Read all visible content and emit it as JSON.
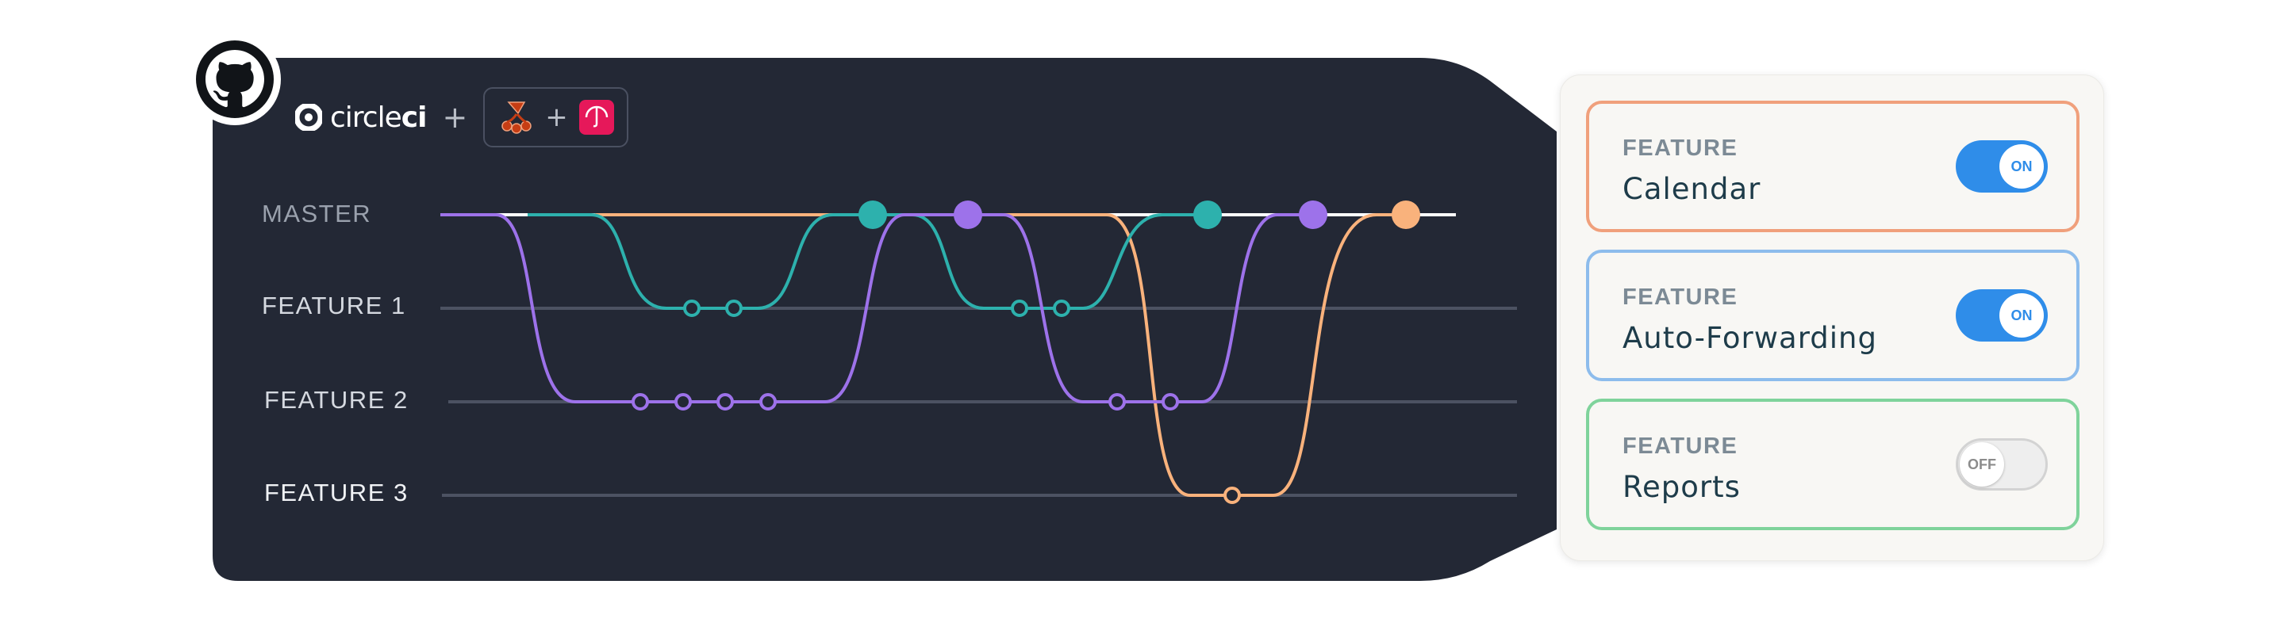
{
  "integrations": {
    "circleci_text_light": "circle",
    "circleci_text_bold": "ci",
    "plus": "+"
  },
  "branches": [
    "MASTER",
    "FEATURE 1",
    "FEATURE 2",
    "FEATURE 3"
  ],
  "colors": {
    "panel": "#232835",
    "master_line": "#ffffff",
    "feature_line": "#4c5262",
    "purple": "#9d72ea",
    "teal": "#2db1ad",
    "orange": "#f9b27c",
    "accent_on": "#2f8de9"
  },
  "flags": {
    "kicker": "FEATURE",
    "items": [
      {
        "name": "Calendar",
        "state": "ON",
        "enabled": true,
        "border_color": "#f0a07c"
      },
      {
        "name": "Auto-Forwarding",
        "state": "ON",
        "enabled": true,
        "border_color": "#8dbcec"
      },
      {
        "name": "Reports",
        "state": "OFF",
        "enabled": false,
        "border_color": "#7fd39b"
      }
    ]
  },
  "icons": [
    "github-icon",
    "circleci-icon",
    "jest-icon",
    "umbrella-icon"
  ]
}
